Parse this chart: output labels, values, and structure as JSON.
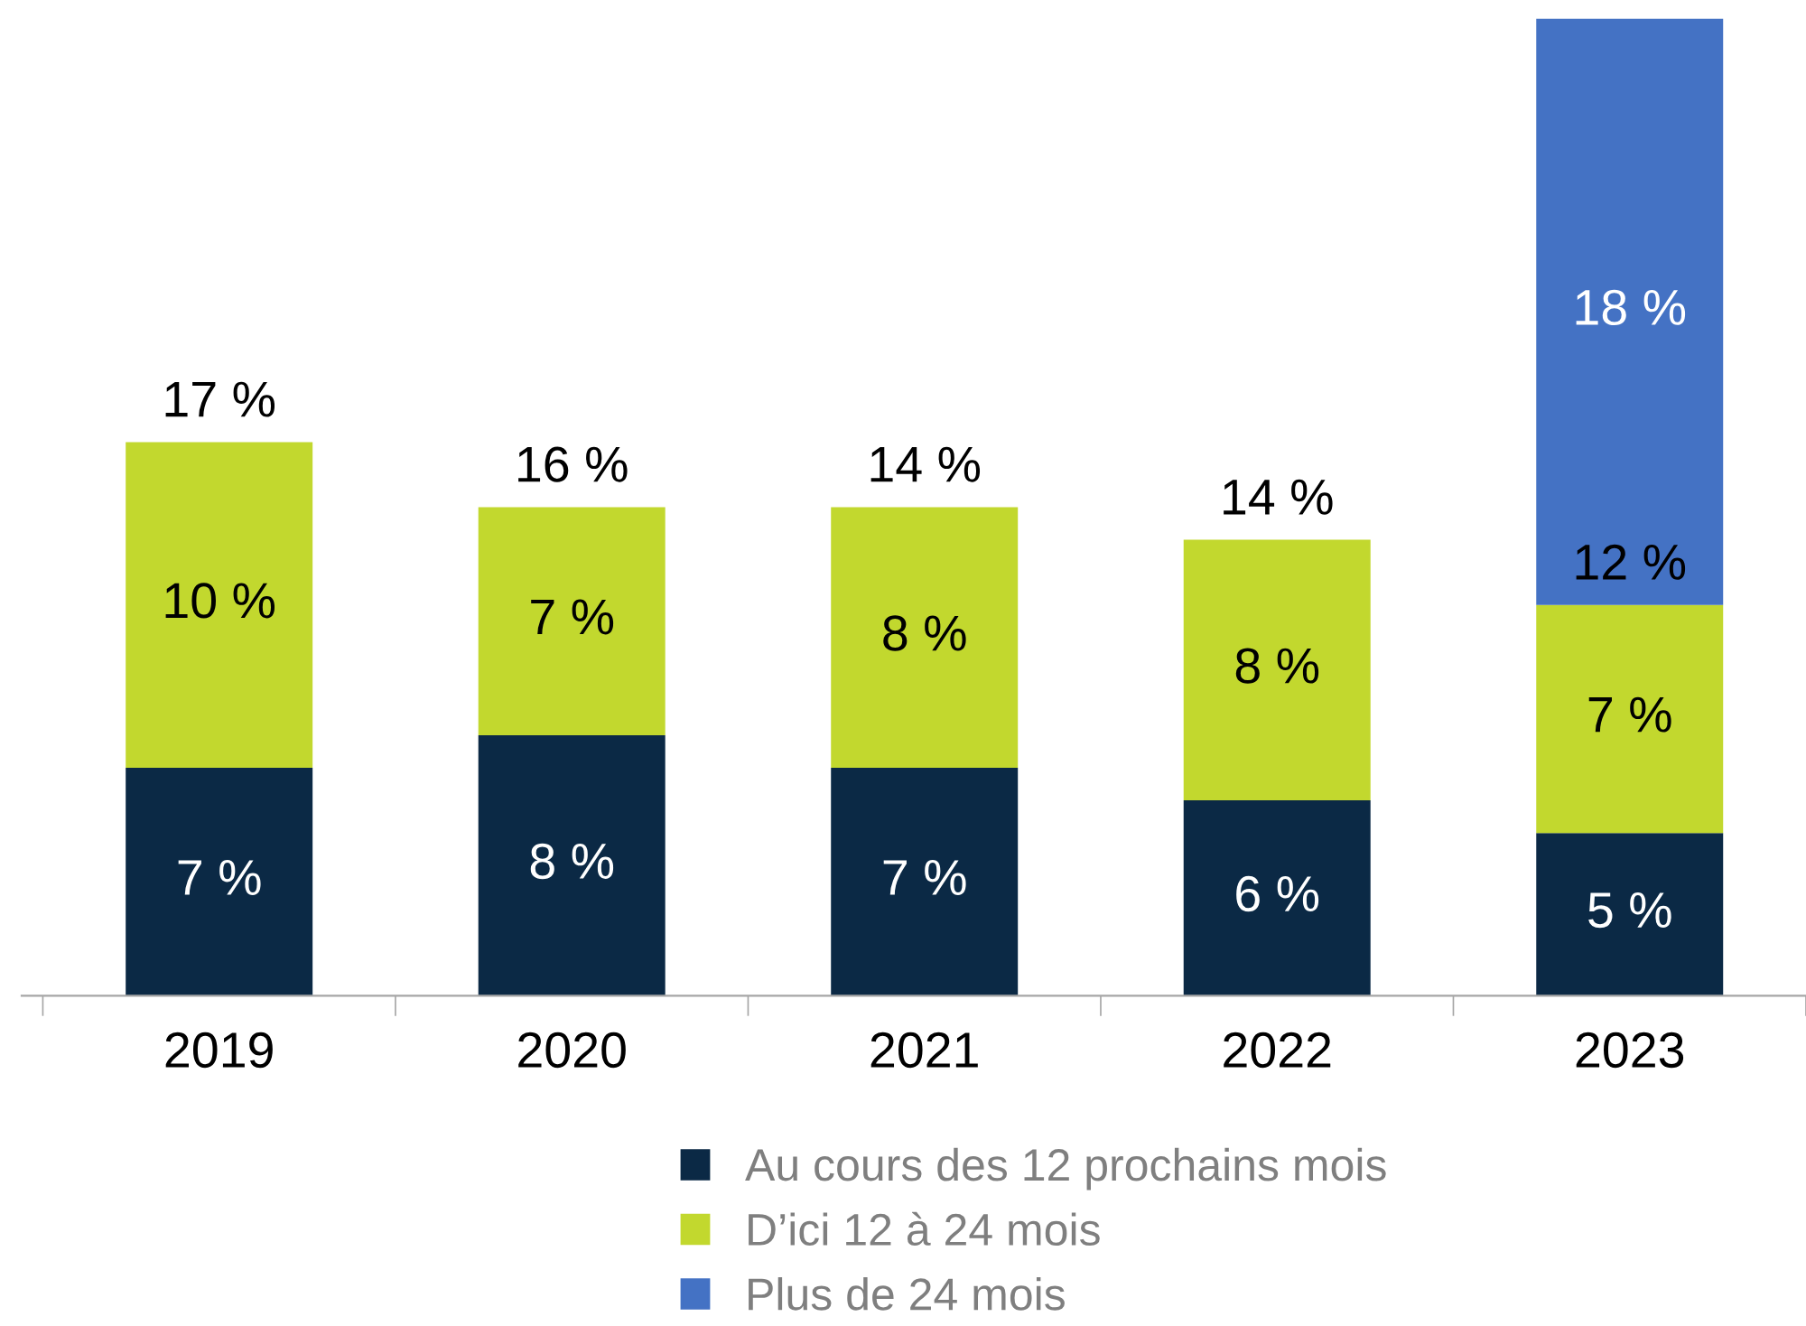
{
  "chart_data": {
    "type": "bar",
    "stacked": true,
    "categories": [
      "2019",
      "2020",
      "2021",
      "2022",
      "2023"
    ],
    "series": [
      {
        "name": "Au cours des 12 prochains mois",
        "color": "#0b2945",
        "values": [
          7,
          8,
          7,
          6,
          5
        ],
        "value_labels": [
          "7 %",
          "8 %",
          "7 %",
          "6 %",
          "5 %"
        ]
      },
      {
        "name": "D’ici 12 à 24 mois",
        "color": "#c2d82e",
        "values": [
          10,
          7,
          8,
          8,
          7
        ],
        "value_labels": [
          "10 %",
          "7 %",
          "8 %",
          "8 %",
          "7 %"
        ]
      },
      {
        "name": "Plus de 24 mois",
        "color": "#4472c4",
        "values": [
          null,
          null,
          null,
          null,
          18
        ],
        "value_labels": [
          null,
          null,
          null,
          null,
          "18 %"
        ]
      }
    ],
    "totals": [
      "17 %",
      "16 %",
      "14 %",
      "14 %",
      null
    ],
    "annotations": [
      {
        "text": "12 %",
        "x": "2023",
        "y": 12
      }
    ],
    "legend": "bottom",
    "grid": false
  }
}
